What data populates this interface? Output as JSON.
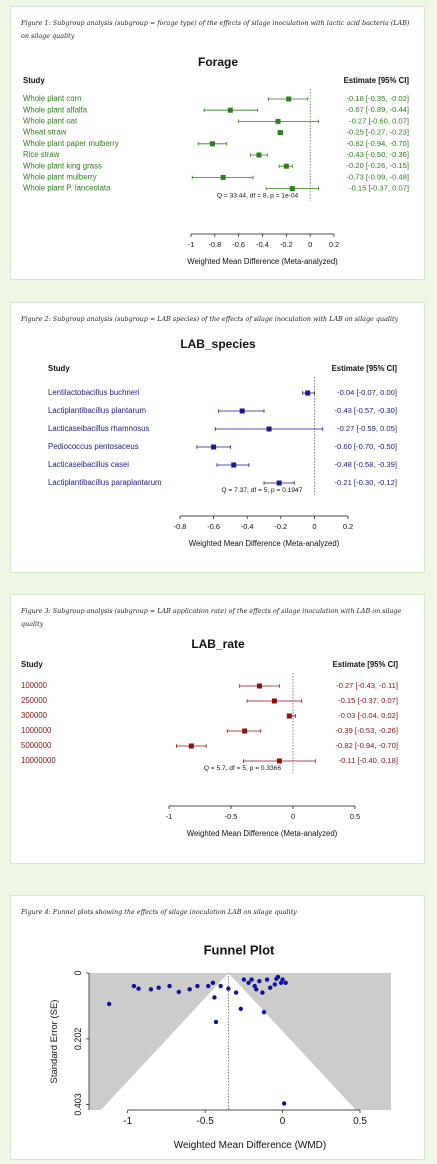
{
  "figures": [
    {
      "caption": "Figure 1: Subgroup analysis (subgroup = forage type) of the effects of silage inoculation with lactic acid bacteria (LAB) on silage quality",
      "chart_data": {
        "type": "forest",
        "title": "Forage",
        "col_left": "Study",
        "col_right": "Estimate [95% CI]",
        "color": "#2e7d1e",
        "xlabel": "Weighted Mean Difference (Meta-analyzed)",
        "xticks": [
          "-1",
          "-0.8",
          "-0.6",
          "-0.4",
          "-0.2",
          "0",
          "0.2"
        ],
        "xlim": [
          -1.0,
          0.2
        ],
        "heterogeneity": "Q = 33.44, df = 8, p = 1e-04",
        "studies": [
          {
            "label": "Whole plant corn",
            "est": -0.18,
            "lo": -0.35,
            "hi": -0.02,
            "ci": "-0.18 [-0.35, -0.02]"
          },
          {
            "label": "Whole plant alfalfa",
            "est": -0.67,
            "lo": -0.89,
            "hi": -0.44,
            "ci": "-0.67 [-0.89, -0.44]"
          },
          {
            "label": "Whole plant oat",
            "est": -0.27,
            "lo": -0.6,
            "hi": 0.07,
            "ci": "-0.27 [-0.60, 0.07]"
          },
          {
            "label": "Wheat straw",
            "est": -0.25,
            "lo": -0.27,
            "hi": -0.23,
            "ci": "-0.25 [-0.27, -0.23]"
          },
          {
            "label": "Whole plant paper mulberry",
            "est": -0.82,
            "lo": -0.94,
            "hi": -0.7,
            "ci": "-0.82 [-0.94, -0.70]"
          },
          {
            "label": "Rice straw",
            "est": -0.43,
            "lo": -0.5,
            "hi": -0.36,
            "ci": "-0.43 [-0.50, -0.36]"
          },
          {
            "label": "Whole plant king grass",
            "est": -0.2,
            "lo": -0.26,
            "hi": -0.15,
            "ci": "-0.20 [-0.26, -0.15]"
          },
          {
            "label": "Whole plant mulberry",
            "est": -0.73,
            "lo": -0.99,
            "hi": -0.48,
            "ci": "-0.73 [-0.99, -0.48]"
          },
          {
            "label": "Whole plant P. lanceolata",
            "est": -0.15,
            "lo": -0.37,
            "hi": 0.07,
            "ci": "-0.15 [-0.37, 0.07]"
          }
        ]
      }
    },
    {
      "caption": "Figure 2: Subgroup analysis (subgroup = LAB species) of the effects of silage inoculation with LAB on silage quality",
      "chart_data": {
        "type": "forest",
        "title": "LAB_species",
        "col_left": "Study",
        "col_right": "Estimate [95% CI]",
        "color": "#1a1a8c",
        "xlabel": "Weighted Mean Difference (Meta-analyzed)",
        "xticks": [
          "-0.8",
          "-0.6",
          "-0.4",
          "-0.2",
          "0",
          "0.2"
        ],
        "xlim": [
          -0.8,
          0.2
        ],
        "heterogeneity": "Q = 7.37, df = 5, p = 0.1947",
        "studies": [
          {
            "label": "Lentilactobacillus buchneri",
            "est": -0.04,
            "lo": -0.07,
            "hi": 0.0,
            "ci": "-0.04 [-0.07, 0.00]"
          },
          {
            "label": "Lactiplantibacillus plantarum",
            "est": -0.43,
            "lo": -0.57,
            "hi": -0.3,
            "ci": "-0.43 [-0.57, -0.30]"
          },
          {
            "label": "Lacticaseibacillus rhamnosus",
            "est": -0.27,
            "lo": -0.59,
            "hi": 0.05,
            "ci": "-0.27 [-0.59, 0.05]"
          },
          {
            "label": "Pediococcus pentosaceus",
            "est": -0.6,
            "lo": -0.7,
            "hi": -0.5,
            "ci": "-0.60 [-0.70, -0.50]"
          },
          {
            "label": "Lacticaseibacillus casei",
            "est": -0.48,
            "lo": -0.58,
            "hi": -0.39,
            "ci": "-0.48 [-0.58, -0.39]"
          },
          {
            "label": "Lactiplantibacillus paraplantarum",
            "est": -0.21,
            "lo": -0.3,
            "hi": -0.12,
            "ci": "-0.21 [-0.30, -0.12]"
          }
        ]
      }
    },
    {
      "caption": "Figure 3: Subgroup analysis (subgroup = LAB application rate) of the effects of silage inoculation with LAB on silage quality",
      "chart_data": {
        "type": "forest",
        "title": "LAB_rate",
        "col_left": "Study",
        "col_right": "Estimate [95% CI]",
        "color": "#8b1010",
        "xlabel": "Weighted Mean Difference (Meta-analyzed)",
        "xticks": [
          "-1",
          "-0.5",
          "0",
          "0.5"
        ],
        "xlim": [
          -1.0,
          0.5
        ],
        "heterogeneity": "Q = 5.7, df = 5, p = 0.3366",
        "studies": [
          {
            "label": "100000",
            "est": -0.27,
            "lo": -0.43,
            "hi": -0.11,
            "ci": "-0.27 [-0.43, -0.11]"
          },
          {
            "label": "250000",
            "est": -0.15,
            "lo": -0.37,
            "hi": 0.07,
            "ci": "-0.15 [-0.37, 0.07]"
          },
          {
            "label": "300000",
            "est": -0.03,
            "lo": -0.04,
            "hi": 0.02,
            "ci": "-0.03 [-0.04, 0.02]"
          },
          {
            "label": "1000000",
            "est": -0.39,
            "lo": -0.53,
            "hi": -0.26,
            "ci": "-0.39 [-0.53, -0.26]"
          },
          {
            "label": "5000000",
            "est": -0.82,
            "lo": -0.94,
            "hi": -0.7,
            "ci": "-0.82 [-0.94, -0.70]"
          },
          {
            "label": "10000000",
            "est": -0.11,
            "lo": -0.4,
            "hi": 0.18,
            "ci": "-0.11 [-0.40, 0.18]"
          }
        ]
      }
    },
    {
      "caption": "Figure 4: Funnel plots showing the effects of silage inoculation LAB on silage quality",
      "chart_data": {
        "type": "scatter",
        "title": "Funnel Plot",
        "xlabel": "Weighted Mean Difference (WMD)",
        "ylabel": "Standard Error (SE)",
        "xticks": [
          "-1",
          "-0.5",
          "0",
          "0.5"
        ],
        "yticks": [
          "0",
          "0.202",
          "0.403"
        ],
        "xlim": [
          -1.25,
          0.7
        ],
        "ylim": [
          0,
          0.42
        ],
        "y_reversed": true,
        "summary_estimate": -0.35,
        "point_color": "#1010a0",
        "funnel_fill": "#cccccc",
        "points": [
          {
            "x": -1.12,
            "y": 0.095
          },
          {
            "x": -0.96,
            "y": 0.04
          },
          {
            "x": -0.93,
            "y": 0.048
          },
          {
            "x": -0.85,
            "y": 0.05
          },
          {
            "x": -0.8,
            "y": 0.045
          },
          {
            "x": -0.73,
            "y": 0.04
          },
          {
            "x": -0.67,
            "y": 0.058
          },
          {
            "x": -0.6,
            "y": 0.05
          },
          {
            "x": -0.55,
            "y": 0.04
          },
          {
            "x": -0.48,
            "y": 0.04
          },
          {
            "x": -0.45,
            "y": 0.03
          },
          {
            "x": -0.44,
            "y": 0.075
          },
          {
            "x": -0.43,
            "y": 0.15
          },
          {
            "x": -0.4,
            "y": 0.04
          },
          {
            "x": -0.35,
            "y": 0.048
          },
          {
            "x": -0.3,
            "y": 0.06
          },
          {
            "x": -0.27,
            "y": 0.11
          },
          {
            "x": -0.25,
            "y": 0.02
          },
          {
            "x": -0.22,
            "y": 0.03
          },
          {
            "x": -0.2,
            "y": 0.02
          },
          {
            "x": -0.18,
            "y": 0.04
          },
          {
            "x": -0.17,
            "y": 0.05
          },
          {
            "x": -0.15,
            "y": 0.025
          },
          {
            "x": -0.13,
            "y": 0.06
          },
          {
            "x": -0.12,
            "y": 0.12
          },
          {
            "x": -0.1,
            "y": 0.02
          },
          {
            "x": -0.08,
            "y": 0.045
          },
          {
            "x": -0.05,
            "y": 0.035
          },
          {
            "x": -0.04,
            "y": 0.018
          },
          {
            "x": -0.03,
            "y": 0.012
          },
          {
            "x": -0.01,
            "y": 0.03
          },
          {
            "x": 0.0,
            "y": 0.02
          },
          {
            "x": 0.02,
            "y": 0.03
          },
          {
            "x": 0.01,
            "y": 0.4
          }
        ]
      }
    }
  ]
}
